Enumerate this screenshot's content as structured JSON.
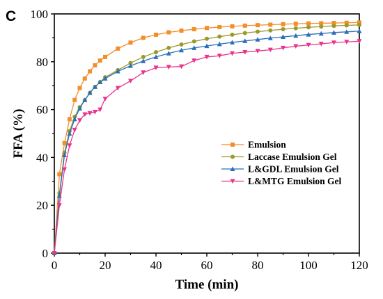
{
  "panel_label": "C",
  "chart_data": {
    "type": "line",
    "title": "",
    "xlabel": "Time (min)",
    "ylabel": "FFA (%)",
    "xlim": [
      0,
      120
    ],
    "ylim": [
      0,
      100
    ],
    "xticks": [
      0,
      20,
      40,
      60,
      80,
      100,
      120
    ],
    "yticks": [
      0,
      20,
      40,
      60,
      80,
      100
    ],
    "grid": false,
    "legend_position": "center-right",
    "series": [
      {
        "name": "Emulsion",
        "color": "#F28E2B",
        "marker": "square",
        "x": [
          0,
          2,
          4,
          6,
          8,
          10,
          12,
          14,
          16,
          18,
          20,
          25,
          30,
          35,
          40,
          45,
          50,
          55,
          60,
          65,
          70,
          75,
          80,
          85,
          90,
          95,
          100,
          105,
          110,
          115,
          120
        ],
        "y": [
          0,
          33,
          46,
          56,
          64,
          69,
          73,
          76,
          78.5,
          80.5,
          82,
          85.5,
          88,
          90,
          91.3,
          92.3,
          93,
          93.6,
          94.1,
          94.5,
          94.8,
          95.1,
          95.3,
          95.5,
          95.7,
          95.9,
          96,
          96.1,
          96.2,
          96.3,
          96.4
        ]
      },
      {
        "name": "Laccase Emulsion  Gel",
        "color": "#9A9A2A",
        "marker": "circle",
        "x": [
          0,
          2,
          4,
          6,
          8,
          10,
          12,
          14,
          16,
          18,
          20,
          25,
          30,
          35,
          40,
          45,
          50,
          55,
          60,
          65,
          70,
          75,
          80,
          85,
          90,
          95,
          100,
          105,
          110,
          115,
          120
        ],
        "y": [
          0,
          25,
          42,
          51,
          57,
          61,
          64,
          67,
          69.5,
          71.5,
          73.5,
          76.5,
          79.5,
          82,
          84,
          85.8,
          87.2,
          88.5,
          89.6,
          90.5,
          91.3,
          92,
          92.6,
          93.1,
          93.6,
          94,
          94.4,
          94.7,
          95,
          95.2,
          95.4
        ]
      },
      {
        "name": "L&GDL Emulsion Gel",
        "color": "#2A6FB8",
        "marker": "triangle-up",
        "x": [
          0,
          2,
          4,
          6,
          8,
          10,
          12,
          14,
          16,
          18,
          20,
          25,
          30,
          35,
          40,
          45,
          50,
          55,
          60,
          65,
          70,
          75,
          80,
          85,
          90,
          95,
          100,
          105,
          110,
          115,
          120
        ],
        "y": [
          0,
          24,
          41,
          50,
          56,
          60.5,
          64,
          67,
          69.5,
          71.5,
          73,
          76,
          78.3,
          80.3,
          82,
          83.5,
          84.8,
          85.8,
          86.6,
          87.4,
          88.1,
          88.7,
          89.3,
          89.9,
          90.4,
          90.9,
          91.4,
          91.8,
          92.2,
          92.5,
          92.8
        ]
      },
      {
        "name": "L&MTG Emulsion Gel",
        "color": "#E8358C",
        "marker": "triangle-down",
        "x": [
          0,
          2,
          4,
          6,
          8,
          10,
          12,
          14,
          16,
          18,
          20,
          25,
          30,
          35,
          40,
          45,
          50,
          55,
          60,
          65,
          70,
          75,
          80,
          85,
          90,
          95,
          100,
          105,
          110,
          115,
          120
        ],
        "y": [
          0,
          20,
          35,
          45,
          51.5,
          55.5,
          58,
          58.5,
          59,
          60,
          64.5,
          69,
          72,
          75.5,
          77.5,
          77.8,
          78,
          80.5,
          82,
          82.5,
          83.5,
          84,
          84.5,
          85,
          85.8,
          86.5,
          87,
          87.5,
          88,
          88.3,
          88.6
        ]
      }
    ]
  }
}
